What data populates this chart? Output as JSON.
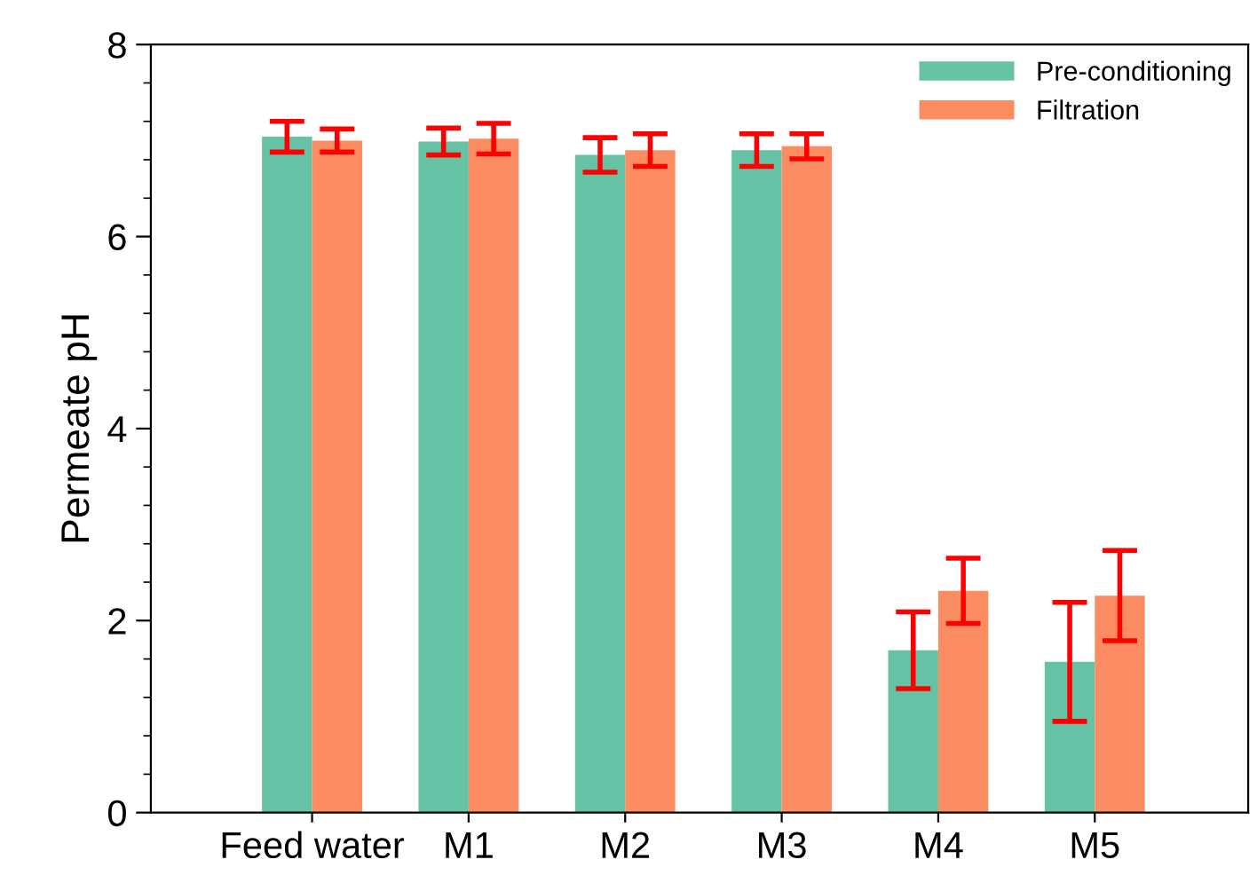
{
  "chart_data": {
    "type": "bar",
    "ylabel": "Permeate pH",
    "categories": [
      "Feed water",
      "M1",
      "M2",
      "M3",
      "M4",
      "M5"
    ],
    "ylim": [
      0,
      8
    ],
    "yticks": [
      0,
      2,
      4,
      6,
      8
    ],
    "grid": false,
    "legend": "top right",
    "series": [
      {
        "name": "Pre-conditioning",
        "color": "#66c2a5",
        "values": [
          7.04,
          6.99,
          6.85,
          6.9,
          1.69,
          1.57
        ],
        "errors": [
          0.16,
          0.14,
          0.18,
          0.17,
          0.4,
          0.62
        ]
      },
      {
        "name": "Filtration",
        "color": "#fc8d62",
        "values": [
          7.0,
          7.02,
          6.9,
          6.94,
          2.31,
          2.26
        ],
        "errors": [
          0.12,
          0.16,
          0.17,
          0.13,
          0.34,
          0.47
        ]
      }
    ]
  }
}
